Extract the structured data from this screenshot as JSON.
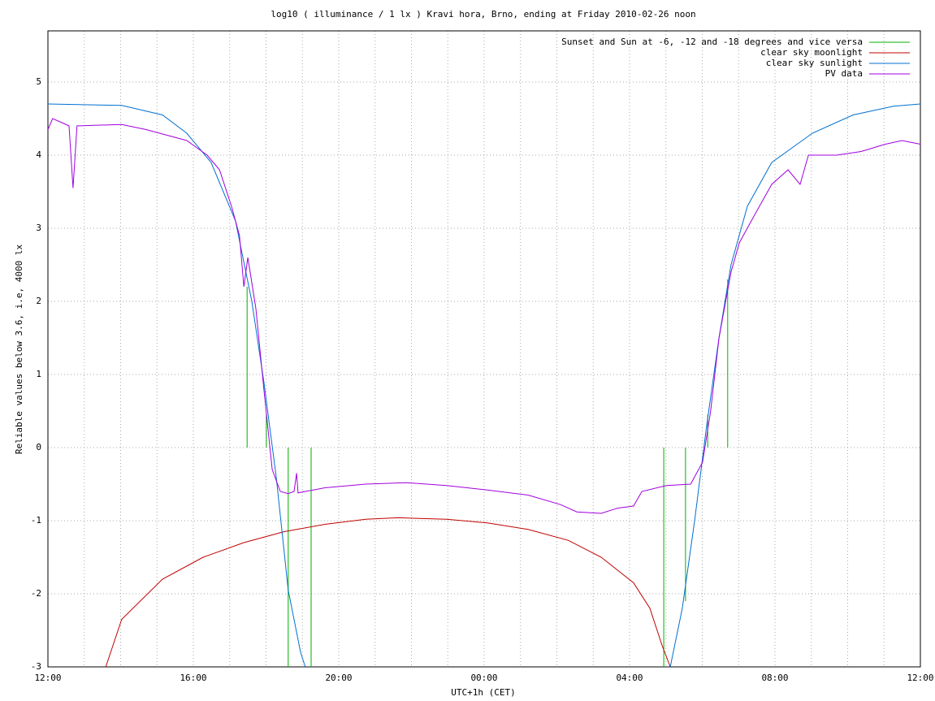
{
  "chart_data": {
    "type": "line",
    "title": "log10 ( illuminance / 1 lx ) Kravi hora, Brno, ending at Friday 2010-02-26 noon",
    "xlabel": "UTC+1h (CET)",
    "ylabel": "Reliable values below 3.6, i.e, 4000 lx",
    "xlim": [
      0,
      24
    ],
    "xticks": [
      {
        "value": 0,
        "label": "12:00"
      },
      {
        "value": 4,
        "label": "16:00"
      },
      {
        "value": 8,
        "label": "20:00"
      },
      {
        "value": 12,
        "label": "00:00"
      },
      {
        "value": 16,
        "label": "04:00"
      },
      {
        "value": 20,
        "label": "08:00"
      },
      {
        "value": 24,
        "label": "12:00"
      }
    ],
    "xminorticks": [
      1,
      2,
      3,
      5,
      6,
      7,
      9,
      10,
      11,
      13,
      14,
      15,
      17,
      18,
      19,
      21,
      22,
      23
    ],
    "ylim": [
      -3,
      5.7
    ],
    "yticks": [
      -3,
      -2,
      -1,
      0,
      1,
      2,
      3,
      4,
      5
    ],
    "grid": true,
    "legend": "top-right",
    "series": [
      {
        "name": "Sunset and Sun at -6, -12 and -18 degrees and vice versa",
        "color": "#00b000",
        "x": [
          5.48,
          5.48,
          5.48,
          6.01,
          6.01,
          6.01,
          6.61,
          6.61,
          6.61,
          7.24,
          7.24,
          7.24,
          16.94,
          16.94,
          16.94,
          17.54,
          17.54,
          17.54,
          18.15,
          18.15,
          18.15,
          18.7,
          18.7
        ],
        "values": [
          0,
          2.2,
          null,
          0,
          0.45,
          null,
          0,
          -3,
          null,
          0,
          -3,
          null,
          0,
          -3,
          null,
          0,
          -2.1,
          null,
          0,
          0.45,
          null,
          0,
          2.3
        ]
      },
      {
        "name": "clear sky moonlight",
        "color": "#c00000",
        "x": [
          1.59,
          2.03,
          3.15,
          4.27,
          5.39,
          6.5,
          7.62,
          8.74,
          9.63,
          10.97,
          12.09,
          13.21,
          14.32,
          15.22,
          16.11,
          16.56,
          16.89,
          17.12
        ],
        "values": [
          -3,
          -2.35,
          -1.8,
          -1.5,
          -1.3,
          -1.15,
          -1.05,
          -0.98,
          -0.96,
          -0.98,
          -1.03,
          -1.12,
          -1.27,
          -1.5,
          -1.85,
          -2.2,
          -2.7,
          -3
        ]
      },
      {
        "name": "clear sky sunlight",
        "color": "#0070d0",
        "x": [
          0,
          2.03,
          3.15,
          3.82,
          4.49,
          5.16,
          5.61,
          5.94,
          6.28,
          6.61,
          6.95,
          7.08,
          7.1,
          17.12,
          17.45,
          17.79,
          18.12,
          18.46,
          18.79,
          19.24,
          19.91,
          21.03,
          22.15,
          23.26,
          24
        ],
        "values": [
          4.7,
          4.68,
          4.55,
          4.3,
          3.9,
          3.1,
          2.0,
          0.9,
          -0.4,
          -1.95,
          -2.8,
          -3,
          null,
          -3,
          -2.2,
          -1.0,
          0.3,
          1.5,
          2.5,
          3.3,
          3.9,
          4.3,
          4.55,
          4.67,
          4.7
        ]
      },
      {
        "name": "PV data",
        "color": "#a000e0",
        "x": [
          0,
          0.13,
          0.36,
          0.58,
          0.69,
          0.8,
          2.03,
          2.7,
          3.82,
          4.38,
          4.72,
          5.05,
          5.27,
          5.39,
          5.5,
          5.72,
          5.94,
          6.17,
          6.39,
          6.61,
          6.77,
          6.84,
          6.88,
          7.62,
          8.74,
          9.85,
          10.97,
          12.09,
          13.21,
          14.1,
          14.55,
          15.22,
          15.66,
          16.11,
          16.34,
          17.01,
          17.68,
          18.01,
          18.23,
          18.46,
          18.79,
          19.02,
          19.46,
          19.91,
          20.36,
          20.69,
          20.92,
          21.7,
          22.37,
          23.04,
          23.49,
          24
        ],
        "values": [
          4.35,
          4.5,
          4.45,
          4.4,
          3.55,
          4.4,
          4.42,
          4.35,
          4.2,
          4.0,
          3.8,
          3.3,
          2.9,
          2.2,
          2.6,
          1.9,
          0.8,
          -0.3,
          -0.6,
          -0.63,
          -0.6,
          -0.35,
          -0.62,
          -0.55,
          -0.5,
          -0.48,
          -0.52,
          -0.58,
          -0.65,
          -0.78,
          -0.88,
          -0.9,
          -0.83,
          -0.8,
          -0.6,
          -0.52,
          -0.5,
          -0.2,
          0.5,
          1.5,
          2.4,
          2.8,
          3.2,
          3.6,
          3.8,
          3.6,
          4.0,
          4.0,
          4.05,
          4.15,
          4.2,
          4.15
        ]
      }
    ]
  }
}
